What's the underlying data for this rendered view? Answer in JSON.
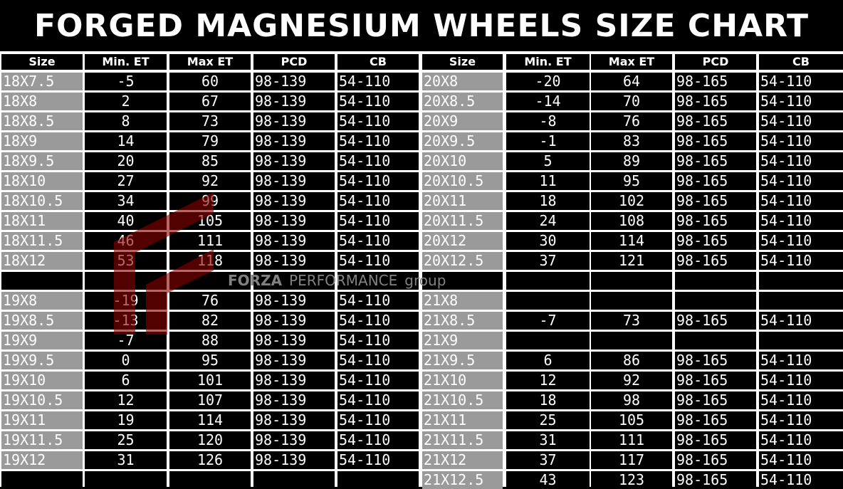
{
  "title": "FORGED MAGNESIUM WHEELS SIZE CHART",
  "headers": [
    "Size",
    "Min. ET",
    "Max ET",
    "PCD",
    "CB",
    "Size",
    "Min. ET",
    "Max ET",
    "PCD",
    "CB"
  ],
  "colors": {
    "size_cell": "#9a9a9a",
    "cell": "#000000",
    "grid": "#ffffff",
    "logo": "#8b0000"
  },
  "watermark": {
    "brand": "FORZA",
    "word": "PERFORMANCE",
    "sub": "group"
  },
  "rows": [
    {
      "left": [
        "18X7.5",
        "-5",
        "60",
        "98-139",
        "54-110"
      ],
      "right": [
        "20X8",
        "-20",
        "64",
        "98-165",
        "54-110"
      ]
    },
    {
      "left": [
        "18X8",
        "2",
        "67",
        "98-139",
        "54-110"
      ],
      "right": [
        "20X8.5",
        "-14",
        "70",
        "98-165",
        "54-110"
      ]
    },
    {
      "left": [
        "18X8.5",
        "8",
        "73",
        "98-139",
        "54-110"
      ],
      "right": [
        "20X9",
        "-8",
        "76",
        "98-165",
        "54-110"
      ]
    },
    {
      "left": [
        "18X9",
        "14",
        "79",
        "98-139",
        "54-110"
      ],
      "right": [
        "20X9.5",
        "-1",
        "83",
        "98-165",
        "54-110"
      ]
    },
    {
      "left": [
        "18X9.5",
        "20",
        "85",
        "98-139",
        "54-110"
      ],
      "right": [
        "20X10",
        "5",
        "89",
        "98-165",
        "54-110"
      ]
    },
    {
      "left": [
        "18X10",
        "27",
        "92",
        "98-139",
        "54-110"
      ],
      "right": [
        "20X10.5",
        "11",
        "95",
        "98-165",
        "54-110"
      ]
    },
    {
      "left": [
        "18X10.5",
        "34",
        "99",
        "98-139",
        "54-110"
      ],
      "right": [
        "20X11",
        "18",
        "102",
        "98-165",
        "54-110"
      ]
    },
    {
      "left": [
        "18X11",
        "40",
        "105",
        "98-139",
        "54-110"
      ],
      "right": [
        "20X11.5",
        "24",
        "108",
        "98-165",
        "54-110"
      ]
    },
    {
      "left": [
        "18X11.5",
        "46",
        "111",
        "98-139",
        "54-110"
      ],
      "right": [
        "20X12",
        "30",
        "114",
        "98-165",
        "54-110"
      ]
    },
    {
      "left": [
        "18X12",
        "53",
        "118",
        "98-139",
        "54-110"
      ],
      "right": [
        "20X12.5",
        "37",
        "121",
        "98-165",
        "54-110"
      ]
    },
    {
      "left": [
        "",
        "",
        "",
        "",
        ""
      ],
      "right": [
        "",
        "",
        "",
        "",
        ""
      ]
    },
    {
      "left": [
        "19X8",
        "-19",
        "76",
        "98-139",
        "54-110"
      ],
      "right": [
        "21X8",
        "",
        "",
        "",
        ""
      ]
    },
    {
      "left": [
        "19X8.5",
        "-13",
        "82",
        "98-139",
        "54-110"
      ],
      "right": [
        "21X8.5",
        "-7",
        "73",
        "98-165",
        "54-110"
      ]
    },
    {
      "left": [
        "19X9",
        "-7",
        "88",
        "98-139",
        "54-110"
      ],
      "right": [
        "21X9",
        "",
        "",
        "",
        ""
      ]
    },
    {
      "left": [
        "19X9.5",
        "0",
        "95",
        "98-139",
        "54-110"
      ],
      "right": [
        "21X9.5",
        "6",
        "86",
        "98-165",
        "54-110"
      ]
    },
    {
      "left": [
        "19X10",
        "6",
        "101",
        "98-139",
        "54-110"
      ],
      "right": [
        "21X10",
        "12",
        "92",
        "98-165",
        "54-110"
      ]
    },
    {
      "left": [
        "19X10.5",
        "12",
        "107",
        "98-139",
        "54-110"
      ],
      "right": [
        "21X10.5",
        "18",
        "98",
        "98-165",
        "54-110"
      ]
    },
    {
      "left": [
        "19X11",
        "19",
        "114",
        "98-139",
        "54-110"
      ],
      "right": [
        "21X11",
        "25",
        "105",
        "98-165",
        "54-110"
      ]
    },
    {
      "left": [
        "19X11.5",
        "25",
        "120",
        "98-139",
        "54-110"
      ],
      "right": [
        "21X11.5",
        "31",
        "111",
        "98-165",
        "54-110"
      ]
    },
    {
      "left": [
        "19X12",
        "31",
        "126",
        "98-139",
        "54-110"
      ],
      "right": [
        "21X12",
        "37",
        "117",
        "98-165",
        "54-110"
      ]
    },
    {
      "left": [
        "",
        "",
        "",
        "",
        ""
      ],
      "right": [
        "21X12.5",
        "43",
        "123",
        "98-165",
        "54-110"
      ]
    }
  ]
}
